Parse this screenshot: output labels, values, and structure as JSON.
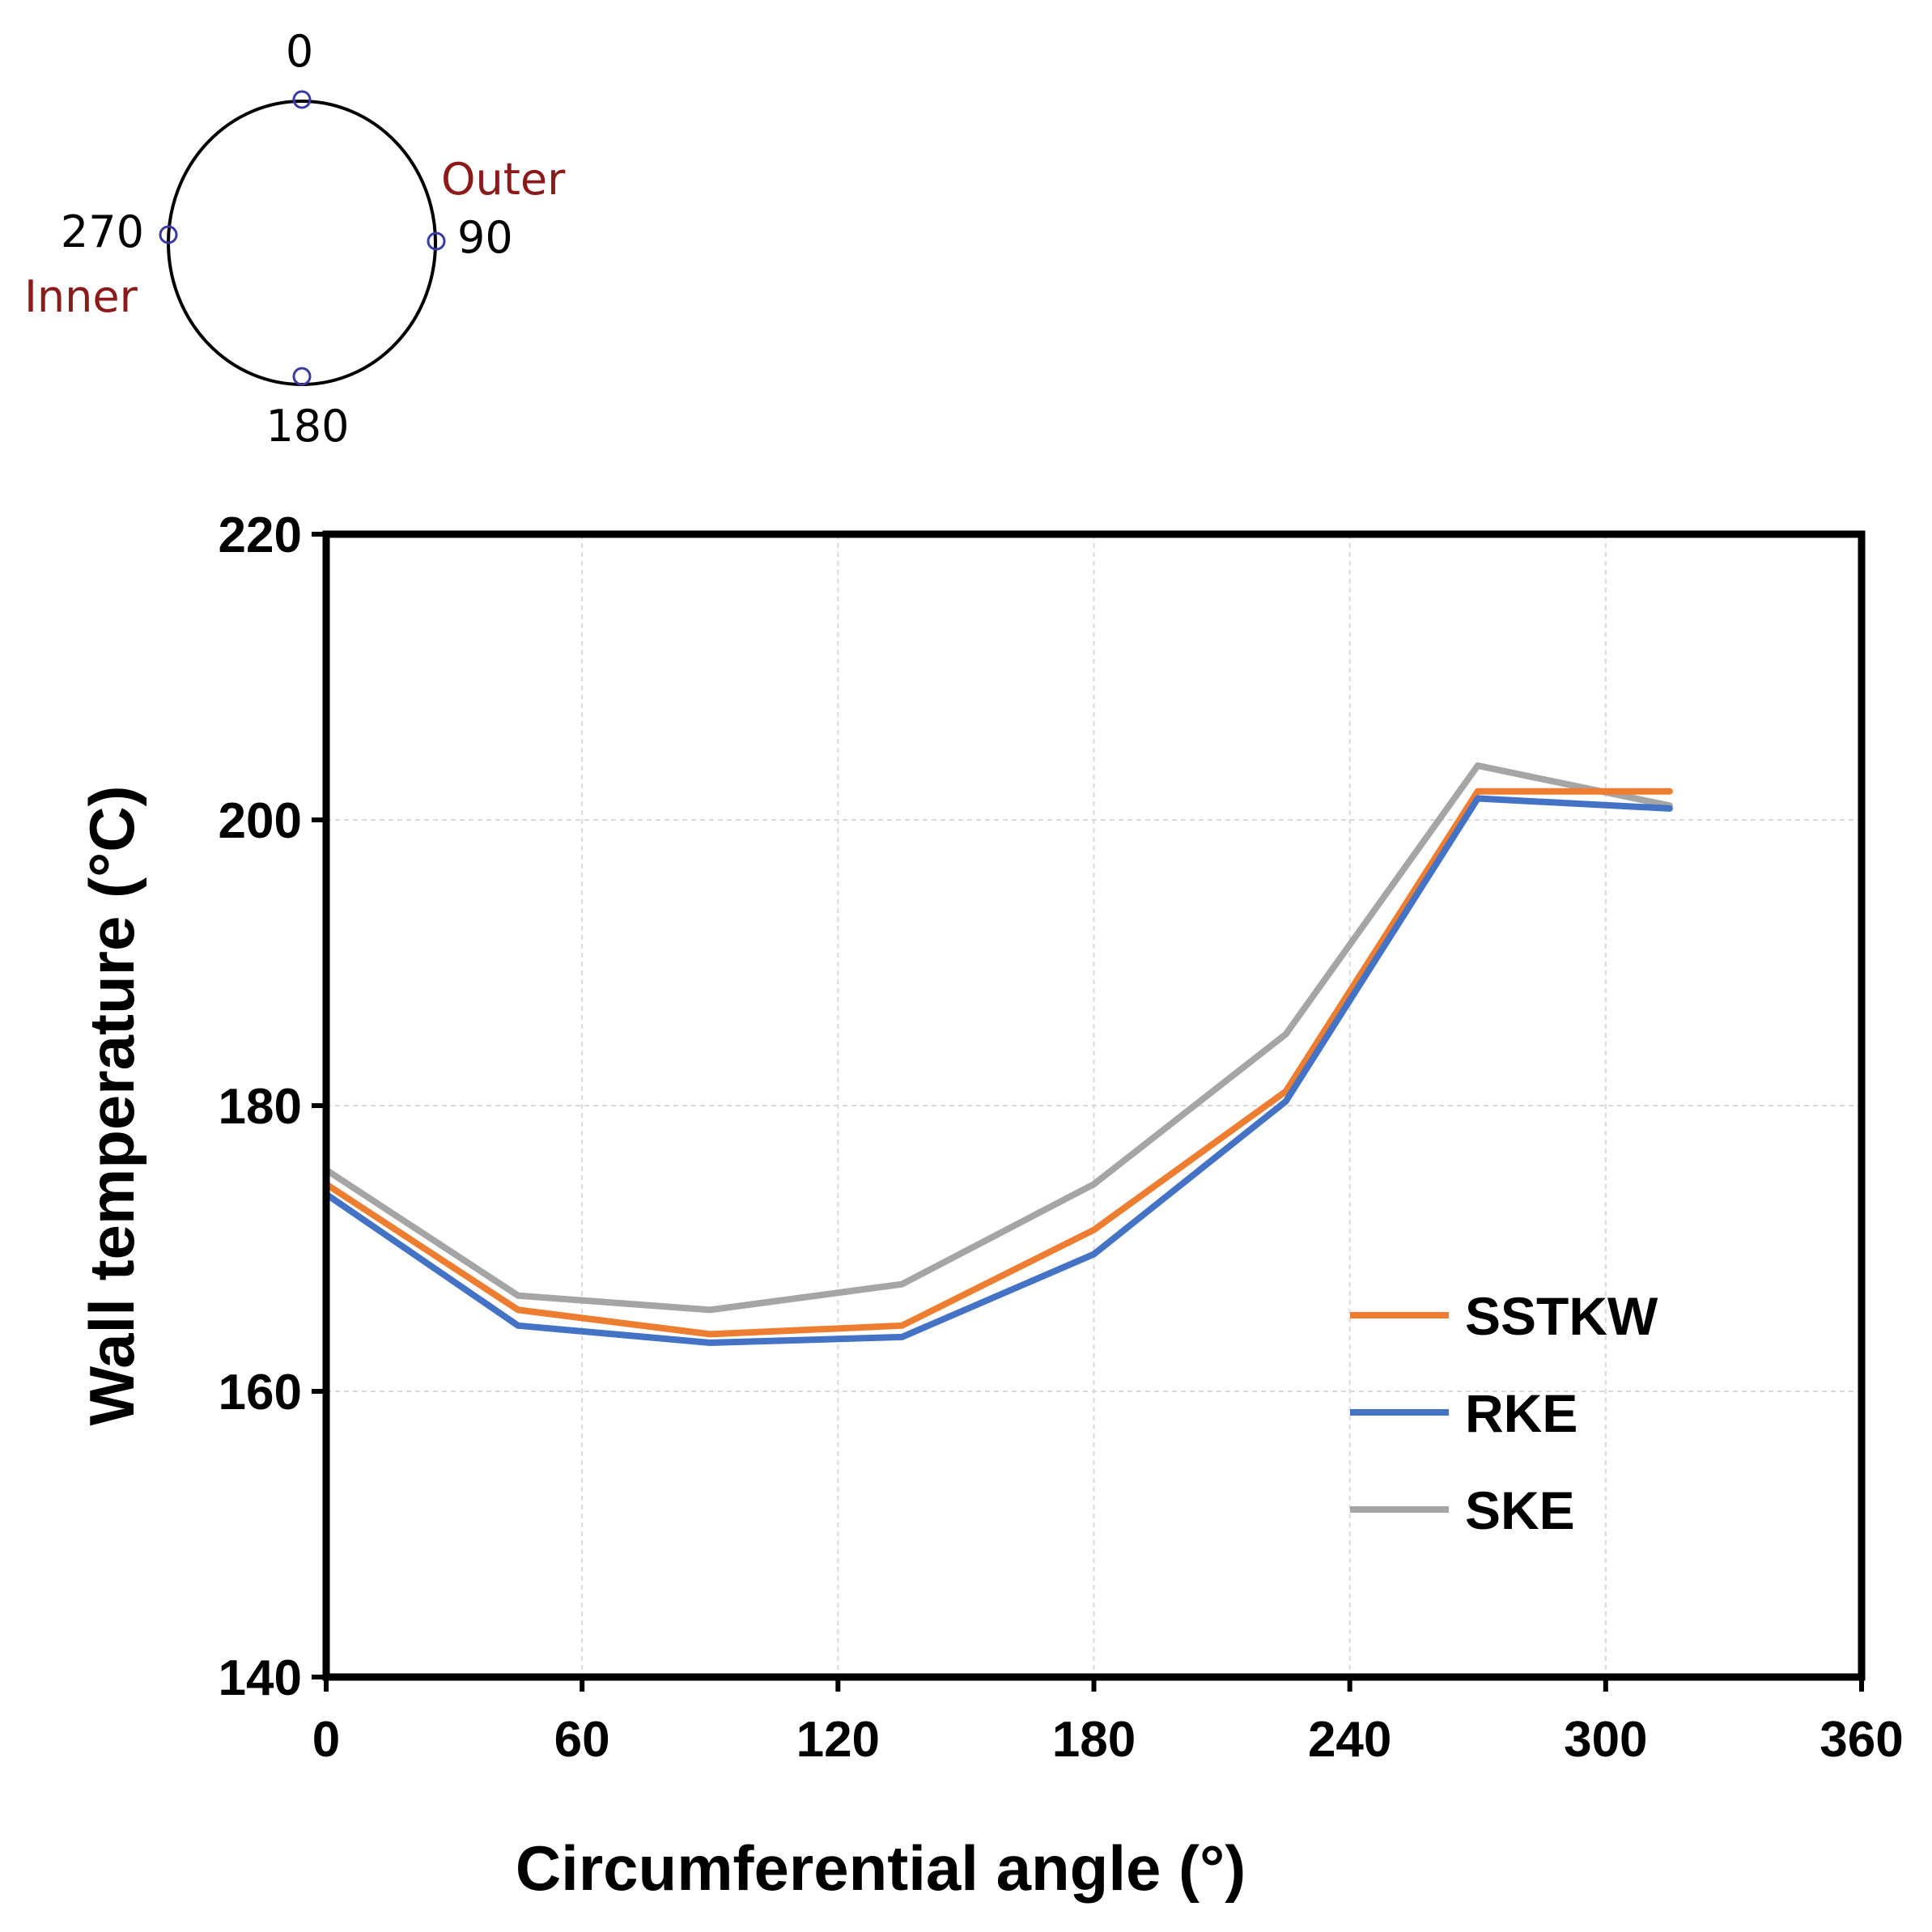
{
  "diagram": {
    "labels": {
      "top": "0",
      "right": "90",
      "bottom": "180",
      "left": "270"
    },
    "sides": {
      "outer": "Outer",
      "inner": "Inner"
    },
    "side_color": "#8b1a1a",
    "marker_color": "#3a3aa0"
  },
  "chart_data": {
    "type": "line",
    "title": "",
    "xlabel": "Circumferential angle (°)",
    "ylabel": "Wall temperature (°C)",
    "xlim": [
      0,
      360
    ],
    "ylim": [
      140,
      220
    ],
    "xticks": [
      0,
      60,
      120,
      180,
      240,
      300,
      360
    ],
    "yticks": [
      140,
      160,
      180,
      200,
      220
    ],
    "grid": true,
    "legend_position": "right",
    "x": [
      0,
      45,
      90,
      135,
      180,
      225,
      270,
      315
    ],
    "series": [
      {
        "name": "SSTKW",
        "color": "#ed7d31",
        "values": [
          174.5,
          165.7,
          164.0,
          164.6,
          171.3,
          181.0,
          202.0,
          202.0
        ]
      },
      {
        "name": "RKE",
        "color": "#4472c4",
        "values": [
          173.8,
          164.6,
          163.4,
          163.8,
          169.6,
          180.3,
          201.5,
          200.8
        ]
      },
      {
        "name": "SKE",
        "color": "#a5a5a5",
        "values": [
          175.5,
          166.7,
          165.7,
          167.5,
          174.5,
          185.0,
          203.8,
          201.0
        ]
      }
    ]
  }
}
